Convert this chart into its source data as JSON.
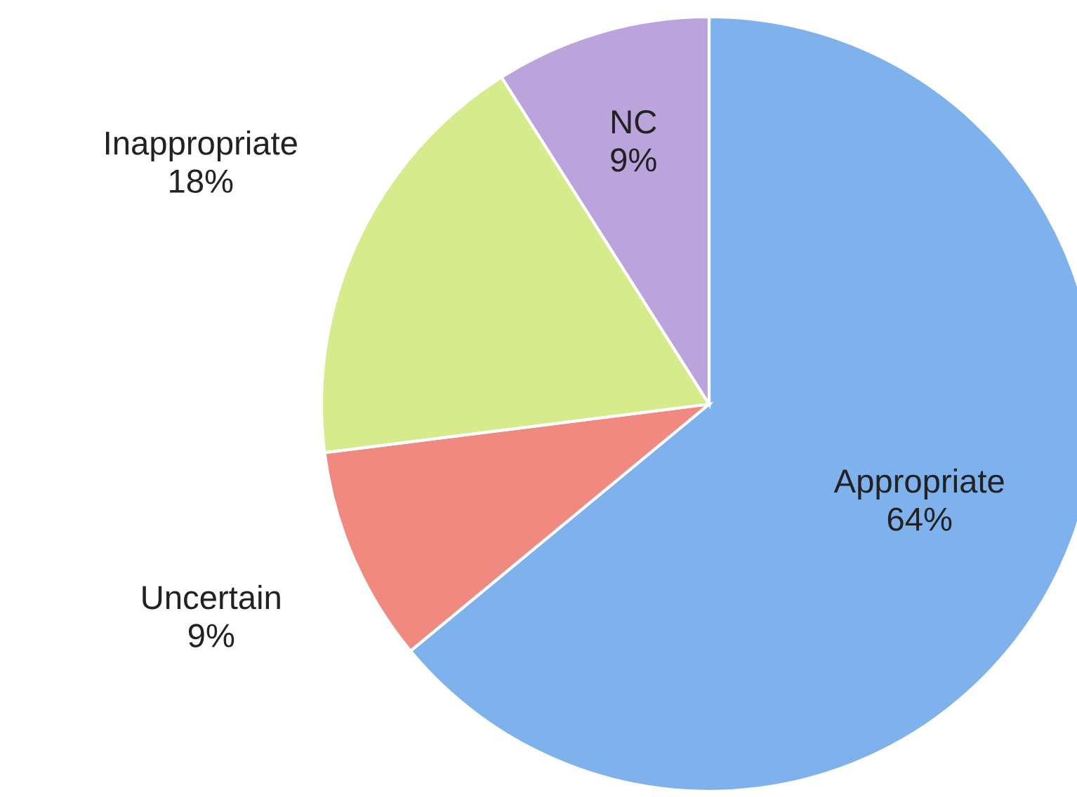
{
  "chart_data": {
    "type": "pie",
    "categories": [
      "Appropriate",
      "Uncertain",
      "Inappropriate",
      "NC"
    ],
    "values": [
      64,
      9,
      18,
      9
    ],
    "value_labels": [
      "64%",
      "9%",
      "18%",
      "9%"
    ],
    "colors": [
      "#7fb2ec",
      "#f08a80",
      "#d6eb8c",
      "#bba3dc"
    ]
  }
}
